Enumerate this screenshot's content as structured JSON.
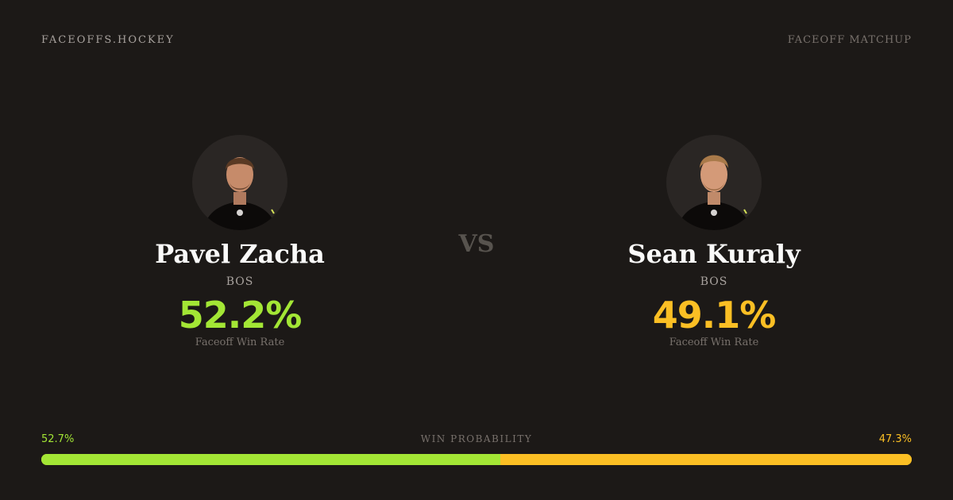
{
  "header": {
    "site_name": "FACEOFFS.HOCKEY",
    "page_label": "FACEOFF MATCHUP"
  },
  "players": [
    {
      "name": "Pavel Zacha",
      "team": "BOS",
      "faceoff_win_rate": "52.2%",
      "rate_label": "Faceoff Win Rate",
      "accent_color": "#a3e635",
      "photo_icon": "player-headshot"
    },
    {
      "name": "Sean Kuraly",
      "team": "BOS",
      "faceoff_win_rate": "49.1%",
      "rate_label": "Faceoff Win Rate",
      "accent_color": "#fbbf24",
      "photo_icon": "player-headshot"
    }
  ],
  "vs_label": "VS",
  "win_probability": {
    "title": "WIN PROBABILITY",
    "left_label": "52.7%",
    "right_label": "47.3%",
    "left_value": 52.7,
    "right_value": 47.3
  }
}
